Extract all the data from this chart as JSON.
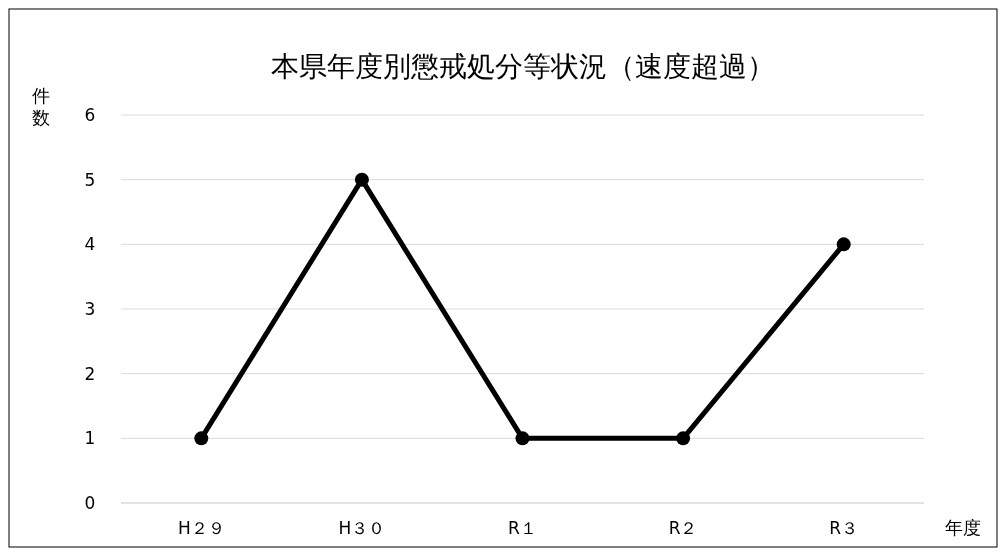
{
  "chart_data": {
    "type": "line",
    "title": "本県年度別懲戒処分等状況（速度超過）",
    "ylabel": "件数",
    "xlabel": "年度",
    "categories": [
      "H２９",
      "H３０",
      "R１",
      "R２",
      "R３"
    ],
    "series": [
      {
        "color": "#000000",
        "values": [
          1,
          5,
          1,
          1,
          4
        ]
      }
    ],
    "ylim": [
      0,
      6
    ],
    "yticks": [
      0,
      1,
      2,
      3,
      4,
      5,
      6
    ],
    "grid": "y",
    "marker": "circle",
    "line_style": "solid"
  }
}
